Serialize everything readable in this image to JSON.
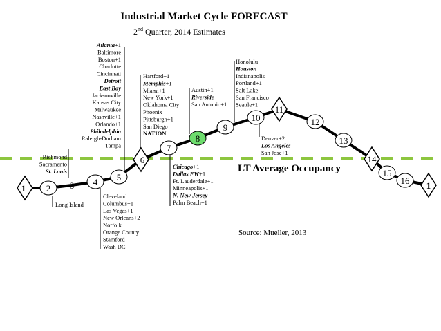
{
  "title": "Industrial Market Cycle FORECAST",
  "subtitle": {
    "sup_prefix": "2",
    "sup": "nd",
    "rest": " Quarter, 2014 Estimates"
  },
  "occupancy_label": "LT Average Occupancy",
  "source": "Source: Mueller, 2013",
  "cycle_points": [
    "1",
    "2",
    "3",
    "4",
    "5",
    "6",
    "7",
    "8",
    "9",
    "10",
    "11",
    "12",
    "13",
    "14",
    "15",
    "16",
    "1"
  ],
  "highlight_point": "8",
  "highlight_color": "#6ddc6d",
  "curve_color": "#000000",
  "occupancy_line_color": "#8dc63f",
  "markets": {
    "p1_above": [
      {
        "t": "Richmond",
        "s": "n"
      },
      {
        "t": "Sacramento",
        "s": "n"
      },
      {
        "t": "St. Louis",
        "s": "bi"
      }
    ],
    "p2_below": [
      {
        "t": "Long Island",
        "s": "n"
      }
    ],
    "p5_above": [
      {
        "t": "Atlanta",
        "s": "bi",
        "x": "+1"
      },
      {
        "t": "Baltimore",
        "s": "n"
      },
      {
        "t": "Boston+1",
        "s": "n"
      },
      {
        "t": "Charlotte",
        "s": "n"
      },
      {
        "t": "Cincinnati",
        "s": "n"
      },
      {
        "t": "Detroit",
        "s": "bi"
      },
      {
        "t": "East Bay",
        "s": "bi"
      },
      {
        "t": "Jacksonville",
        "s": "n"
      },
      {
        "t": "Kansas City",
        "s": "n"
      },
      {
        "t": "Milwaukee",
        "s": "n"
      },
      {
        "t": "Nashville+1",
        "s": "n"
      },
      {
        "t": "Orlando+1",
        "s": "n"
      },
      {
        "t": "Philadelphia",
        "s": "bi"
      },
      {
        "t": "Raleigh-Durham",
        "s": "n"
      },
      {
        "t": "Tampa",
        "s": "n"
      }
    ],
    "p4_below": [
      {
        "t": "Cleveland",
        "s": "n"
      },
      {
        "t": "Columbus+1",
        "s": "n"
      },
      {
        "t": "Las Vegas+1",
        "s": "n"
      },
      {
        "t": "New Orleans+2",
        "s": "n"
      },
      {
        "t": "Norfolk",
        "s": "n"
      },
      {
        "t": "Orange County",
        "s": "n"
      },
      {
        "t": "Stamford",
        "s": "n"
      },
      {
        "t": "Wash DC",
        "s": "n"
      }
    ],
    "p6_above": [
      {
        "t": "Hartford+1",
        "s": "n"
      },
      {
        "t": "Memphis",
        "s": "bi",
        "x": "+1"
      },
      {
        "t": "Miami+1",
        "s": "n"
      },
      {
        "t": "New York+1",
        "s": "n"
      },
      {
        "t": "Oklahoma City",
        "s": "n"
      },
      {
        "t": "Phoenix",
        "s": "n"
      },
      {
        "t": "Pittsburgh+1",
        "s": "n"
      },
      {
        "t": "San Diego",
        "s": "n"
      },
      {
        "t": "NATION",
        "s": "b"
      }
    ],
    "p7_below": [
      {
        "t": "Chicago",
        "s": "bi",
        "x": "+1"
      },
      {
        "t": "Dallas FW",
        "s": "bi",
        "x": "+1"
      },
      {
        "t": "Ft. Lauderdale+1",
        "s": "n"
      },
      {
        "t": "Minneapolis+1",
        "s": "n"
      },
      {
        "t": "N. New Jersey",
        "s": "bi"
      },
      {
        "t": "Palm Beach+1",
        "s": "n"
      }
    ],
    "p8_above": [
      {
        "t": "Austin+1",
        "s": "n"
      },
      {
        "t": "Riverside",
        "s": "bi"
      },
      {
        "t": "San Antonio+1",
        "s": "n"
      }
    ],
    "p10_above": [
      {
        "t": "Honolulu",
        "s": "n"
      },
      {
        "t": "Houston",
        "s": "bi"
      },
      {
        "t": "Indianapolis",
        "s": "n"
      },
      {
        "t": "Portland+1",
        "s": "n"
      },
      {
        "t": "Salt Lake",
        "s": "n"
      },
      {
        "t": "San Francisco",
        "s": "n"
      },
      {
        "t": "Seattle+1",
        "s": "n"
      }
    ],
    "p10_below": [
      {
        "t": "Denver+2",
        "s": "n"
      },
      {
        "t": "Los Angeles",
        "s": "bi"
      },
      {
        "t": "San Jose+1",
        "s": "n"
      }
    ]
  }
}
